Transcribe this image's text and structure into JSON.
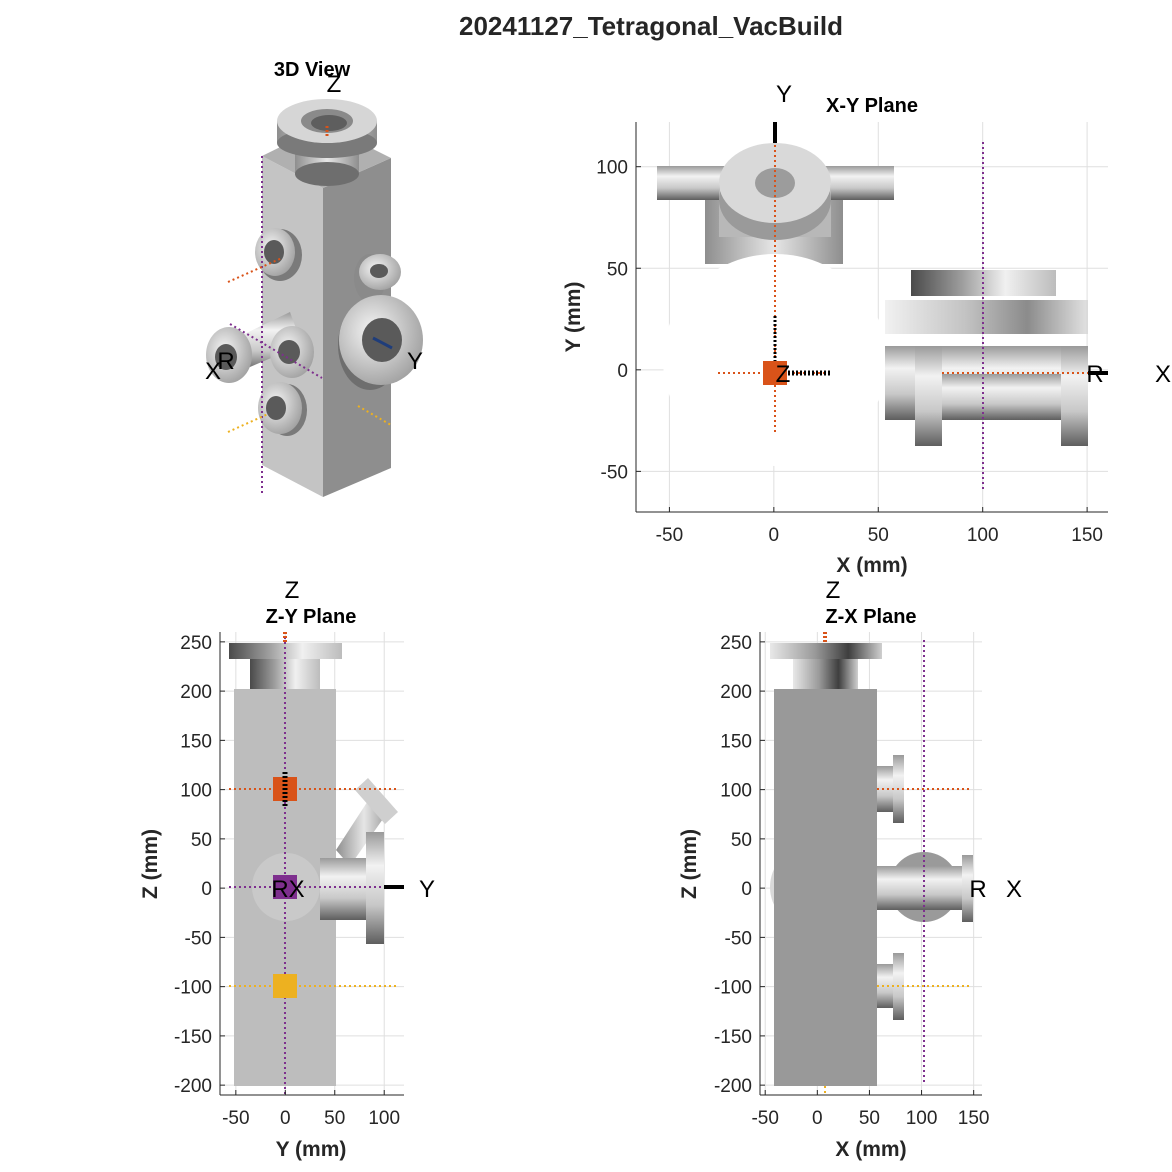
{
  "figure": {
    "title": "20241127_Tetragonal_VacBuild"
  },
  "colors": {
    "orange": "#d95319",
    "purple": "#7e2f8e",
    "yellow": "#edb120",
    "metal_light": "#d9d9d9",
    "metal_dark": "#8c8c8c",
    "body_face": "#a6a6a6",
    "grid": "#dfdfdf"
  },
  "view3d": {
    "title": "3D View",
    "labels": {
      "z": "Z",
      "x": "X",
      "r": "R",
      "y": "Y"
    }
  },
  "chart_data": [
    {
      "type": "diagram-plane",
      "title": "X-Y Plane",
      "xlabel": "X (mm)",
      "ylabel": "Y (mm)",
      "xlim": [
        -66,
        160
      ],
      "ylim": [
        -70,
        122
      ],
      "xticks": [
        -50,
        0,
        50,
        100,
        150
      ],
      "yticks": [
        -50,
        0,
        50,
        100
      ],
      "grid": true,
      "axis_labels": {
        "x": "X",
        "y": "Y",
        "z": "Z",
        "r": "R"
      }
    },
    {
      "type": "diagram-plane",
      "title": "Z-Y Plane",
      "xlabel": "Y (mm)",
      "ylabel": "Z (mm)",
      "xlim": [
        -66,
        120
      ],
      "ylim": [
        -210,
        260
      ],
      "xticks": [
        -50,
        0,
        50,
        100
      ],
      "yticks": [
        -200,
        -150,
        -100,
        -50,
        0,
        50,
        100,
        150,
        200,
        250
      ],
      "grid": true,
      "axis_labels": {
        "z": "Z",
        "y": "Y",
        "rx": "RX"
      }
    },
    {
      "type": "diagram-plane",
      "title": "Z-X Plane",
      "xlabel": "X (mm)",
      "ylabel": "Z (mm)",
      "xlim": [
        -55,
        158
      ],
      "ylim": [
        -210,
        260
      ],
      "xticks": [
        -50,
        0,
        50,
        100,
        150
      ],
      "yticks": [
        -200,
        -150,
        -100,
        -50,
        0,
        50,
        100,
        150,
        200,
        250
      ],
      "grid": true,
      "axis_labels": {
        "z": "Z",
        "x": "X",
        "r": "R"
      }
    }
  ]
}
